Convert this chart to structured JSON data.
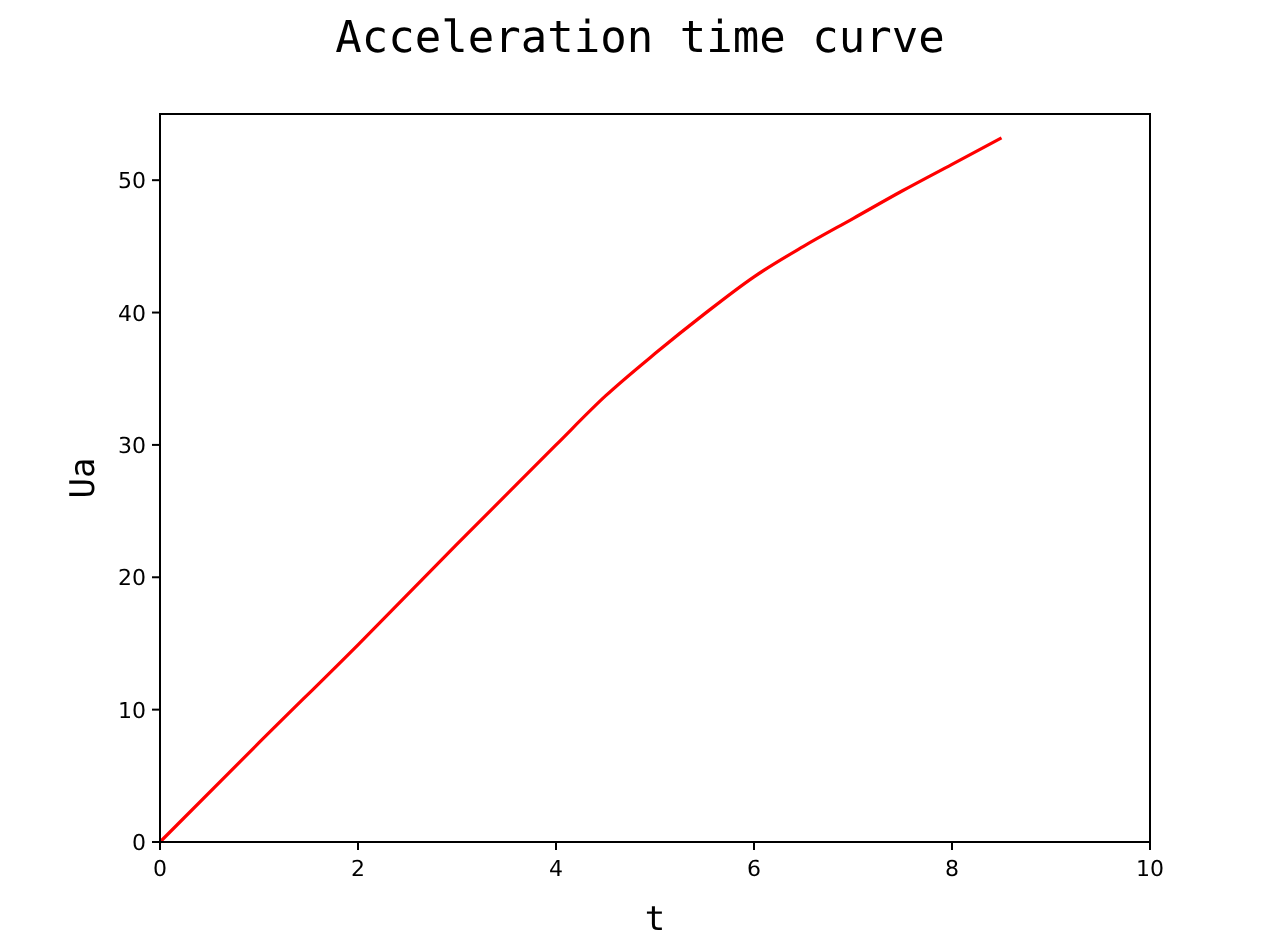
{
  "chart_data": {
    "type": "line",
    "title": "Acceleration time curve",
    "xlabel": "t",
    "ylabel": "Ua",
    "x": [
      0,
      1,
      2,
      3,
      4,
      4.5,
      5,
      5.5,
      6,
      6.5,
      7,
      7.5,
      8,
      8.5
    ],
    "series": [
      {
        "color": "#ff0000",
        "values": [
          0,
          7.5,
          14.9,
          22.5,
          30.0,
          33.7,
          36.9,
          39.9,
          42.7,
          45.0,
          47.1,
          49.2,
          51.2,
          53.2
        ]
      }
    ],
    "xlim": [
      0,
      10
    ],
    "xticks": [
      0,
      2,
      4,
      6,
      8,
      10
    ],
    "ylim": [
      0,
      55
    ],
    "yticks": [
      0,
      10,
      20,
      30,
      40,
      50
    ],
    "grid": false
  }
}
